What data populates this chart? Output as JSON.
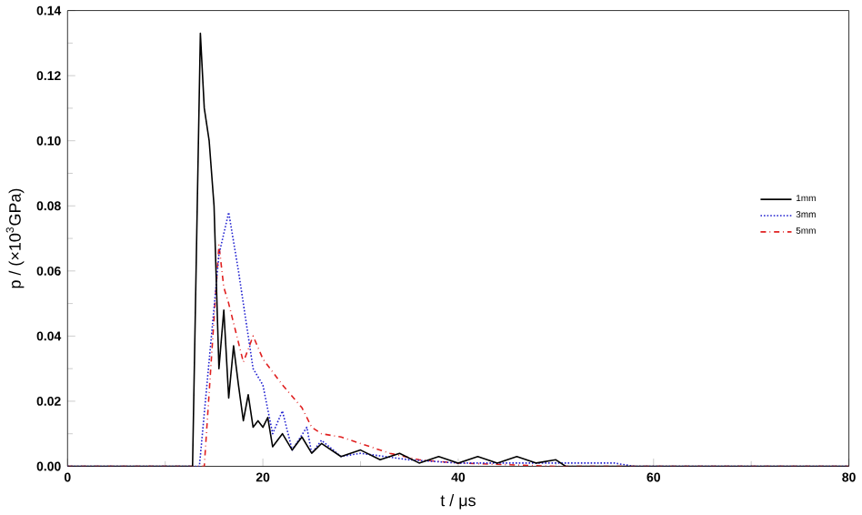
{
  "chart_data": {
    "type": "line",
    "xlabel": "t / μs",
    "ylabel": "p / (×10$^{3}$GPa)",
    "xlim": [
      0,
      80
    ],
    "xticks": [
      0,
      20,
      40,
      60,
      80
    ],
    "ylim": [
      0,
      0.14
    ],
    "yticks": [
      {
        "value": 0,
        "label": "0.00"
      },
      {
        "value": 0.02,
        "label": "0.02"
      },
      {
        "value": 0.04,
        "label": "0.04"
      },
      {
        "value": 0.06,
        "label": "0.06"
      },
      {
        "value": 0.08,
        "label": "0.08"
      },
      {
        "value": 0.1,
        "label": "0.10"
      },
      {
        "value": 0.12,
        "label": "0.12"
      },
      {
        "value": 0.14,
        "label": "0.14"
      }
    ],
    "grid": false,
    "legend": "right",
    "marker": "none",
    "series": [
      {
        "name": "1mm",
        "color": "#000000",
        "line_style": "solid",
        "x": [
          0,
          12.8,
          13.6,
          14,
          14.5,
          15,
          15.5,
          16,
          16.5,
          17,
          17.5,
          18,
          18.5,
          19,
          19.5,
          20,
          20.5,
          21,
          22,
          23,
          24,
          25,
          26,
          28,
          30,
          32,
          34,
          36,
          38,
          40,
          42,
          44,
          46,
          48,
          50,
          51,
          80
        ],
        "values": [
          0,
          0,
          0.133,
          0.11,
          0.1,
          0.08,
          0.03,
          0.048,
          0.021,
          0.037,
          0.025,
          0.014,
          0.022,
          0.012,
          0.014,
          0.012,
          0.015,
          0.006,
          0.01,
          0.005,
          0.009,
          0.004,
          0.007,
          0.003,
          0.005,
          0.002,
          0.004,
          0.001,
          0.003,
          0.001,
          0.003,
          0.001,
          0.003,
          0.001,
          0.002,
          0,
          0
        ]
      },
      {
        "name": "3mm",
        "color": "#2020d0",
        "line_style": "dotted",
        "x": [
          0,
          13.5,
          15.5,
          16.5,
          17.5,
          19,
          20,
          21,
          22,
          23,
          24.5,
          25,
          26,
          28,
          30,
          35,
          40,
          50,
          56,
          58,
          80
        ],
        "values": [
          0,
          0,
          0.065,
          0.078,
          0.06,
          0.03,
          0.025,
          0.01,
          0.017,
          0.005,
          0.012,
          0.004,
          0.008,
          0.003,
          0.004,
          0.002,
          0.001,
          0.001,
          0.001,
          0,
          0
        ]
      },
      {
        "name": "5mm",
        "color": "#e02020",
        "line_style": "dashdot",
        "x": [
          0,
          14,
          15.5,
          16,
          16.5,
          18,
          19,
          20,
          22,
          24,
          25,
          26,
          28,
          30,
          33,
          36,
          40,
          50,
          80
        ],
        "values": [
          0,
          0,
          0.068,
          0.055,
          0.05,
          0.032,
          0.04,
          0.033,
          0.025,
          0.018,
          0.012,
          0.01,
          0.009,
          0.007,
          0.004,
          0.002,
          0.001,
          0,
          0
        ]
      }
    ]
  }
}
